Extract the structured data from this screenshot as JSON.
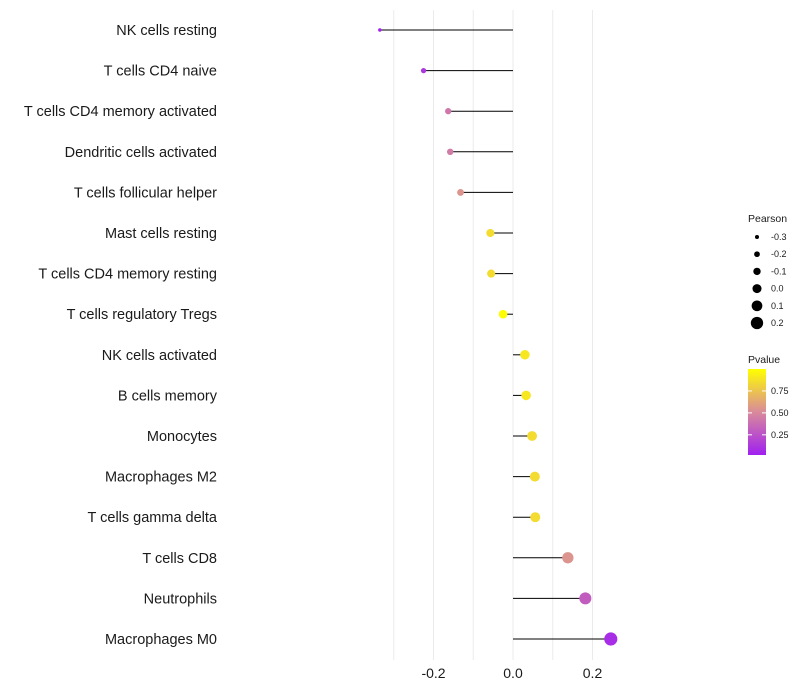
{
  "chart_data": {
    "type": "lollipop",
    "xlim": [
      -0.36,
      0.26
    ],
    "xticks": [
      -0.2,
      0.0,
      0.2
    ],
    "xtick_labels": [
      "-0.2",
      "0.0",
      "0.2"
    ],
    "minor_gridlines": [
      -0.3,
      -0.1,
      0.1
    ],
    "categories": [
      "NK cells resting",
      "T cells CD4 naive",
      "T cells CD4 memory activated",
      "Dendritic cells activated",
      "T cells follicular helper",
      "Mast cells resting",
      "T cells CD4 memory resting",
      "T cells regulatory  Tregs ",
      "NK cells activated",
      "B cells memory",
      "Monocytes",
      "Macrophages M2",
      "T cells gamma delta",
      "T cells CD8",
      "Neutrophils",
      "Macrophages M0"
    ],
    "values": [
      -0.335,
      -0.225,
      -0.163,
      -0.158,
      -0.132,
      -0.057,
      -0.055,
      -0.025,
      0.03,
      0.033,
      0.048,
      0.055,
      0.056,
      0.138,
      0.182,
      0.246
    ],
    "pvalues": [
      0.02,
      0.12,
      0.42,
      0.44,
      0.55,
      0.85,
      0.85,
      0.99,
      0.9,
      0.9,
      0.85,
      0.85,
      0.85,
      0.55,
      0.3,
      0.08
    ],
    "size_legend": {
      "title": "Pearson",
      "labels": [
        "-0.3",
        "-0.2",
        "-0.1",
        "0.0",
        "0.1",
        "0.2"
      ],
      "values": [
        -0.3,
        -0.2,
        -0.1,
        0.0,
        0.1,
        0.2
      ]
    },
    "color_legend": {
      "title": "Pvalue",
      "labels": [
        "0.75",
        "0.50",
        "0.25"
      ],
      "values": [
        0.75,
        0.5,
        0.25
      ],
      "range": [
        0.02,
        1.0
      ],
      "low_color": "#a020f0",
      "mid_color": "#d98a9b",
      "high_color": "#ffff00"
    },
    "stem_color": "#000000",
    "grid_color": "#ebebeb"
  }
}
